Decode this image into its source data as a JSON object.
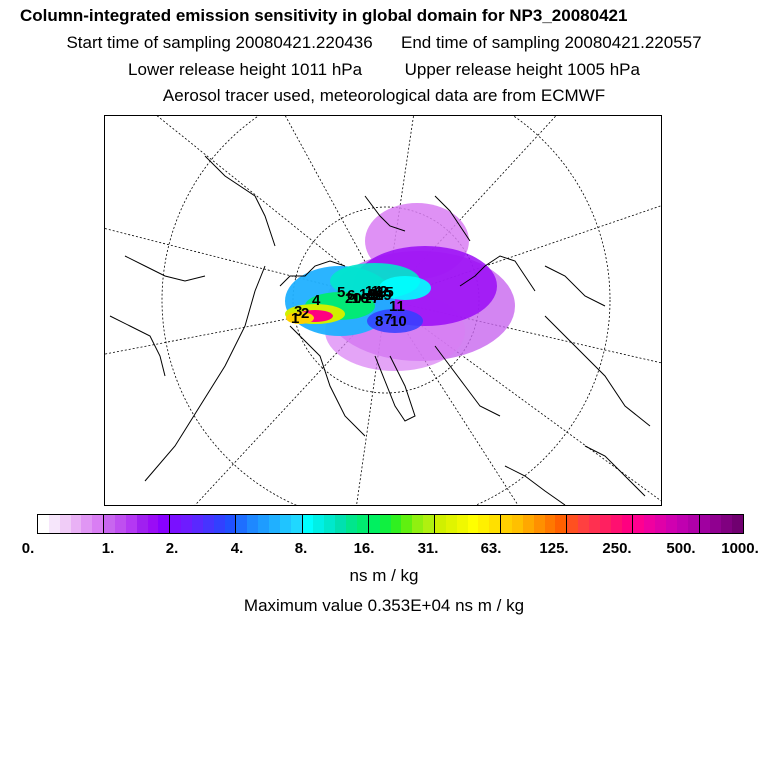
{
  "title": "Column-integrated emission sensitivity in global domain for NP3_20080421",
  "start_label": "Start time of sampling 20080421.220436",
  "end_label": "End time of sampling 20080421.220557",
  "lower_label": "Lower release height 1011 hPa",
  "upper_label": "Upper release height 1005 hPa",
  "tracer_label": "Aerosol tracer used, meteorological data are from ECMWF",
  "colorbar": {
    "ticks": [
      "0.",
      "1.",
      "2.",
      "4.",
      "8.",
      "16.",
      "31.",
      "63.",
      "125.",
      "250.",
      "500.",
      "1000."
    ],
    "colors": [
      "#ffffff",
      "#f6e6fb",
      "#f0ccf7",
      "#e9b1f5",
      "#e096f4",
      "#d97ef3",
      "#c866ef",
      "#bf4ff0",
      "#b438f3",
      "#a020f0",
      "#9a0cf6",
      "#8800ff",
      "#7a10ff",
      "#6e1cff",
      "#5a28ff",
      "#4634ff",
      "#3240ff",
      "#2050ff",
      "#1e6eff",
      "#1e88ff",
      "#1e9cff",
      "#20b0ff",
      "#20c4ff",
      "#20d8ff",
      "#00ffff",
      "#00f0e6",
      "#00e8cc",
      "#00e0b0",
      "#00e68c",
      "#00ec70",
      "#00f060",
      "#10f040",
      "#30f020",
      "#60f010",
      "#90f010",
      "#b0f010",
      "#d0f000",
      "#e0f400",
      "#f0f800",
      "#ffff00",
      "#fff000",
      "#ffe000",
      "#ffd000",
      "#ffc000",
      "#ffa800",
      "#ff9000",
      "#ff7800",
      "#ff6000",
      "#ff5020",
      "#ff4040",
      "#ff3050",
      "#ff2060",
      "#ff1070",
      "#ff0080",
      "#ff0090",
      "#f000a0",
      "#e000a8",
      "#d000b0",
      "#c000b0",
      "#b000a8",
      "#a000a0",
      "#900090",
      "#800080",
      "#700070"
    ]
  },
  "units": "ns m / kg",
  "max_value": "Maximum value  0.353E+04 ns m / kg",
  "map": {
    "receptor_labels": [
      "1",
      "2",
      "3",
      "4",
      "5",
      "6",
      "7",
      "8",
      "9",
      "10",
      "11",
      "12",
      "13",
      "14",
      "15",
      "16",
      "17",
      "18",
      "19",
      "20"
    ]
  }
}
